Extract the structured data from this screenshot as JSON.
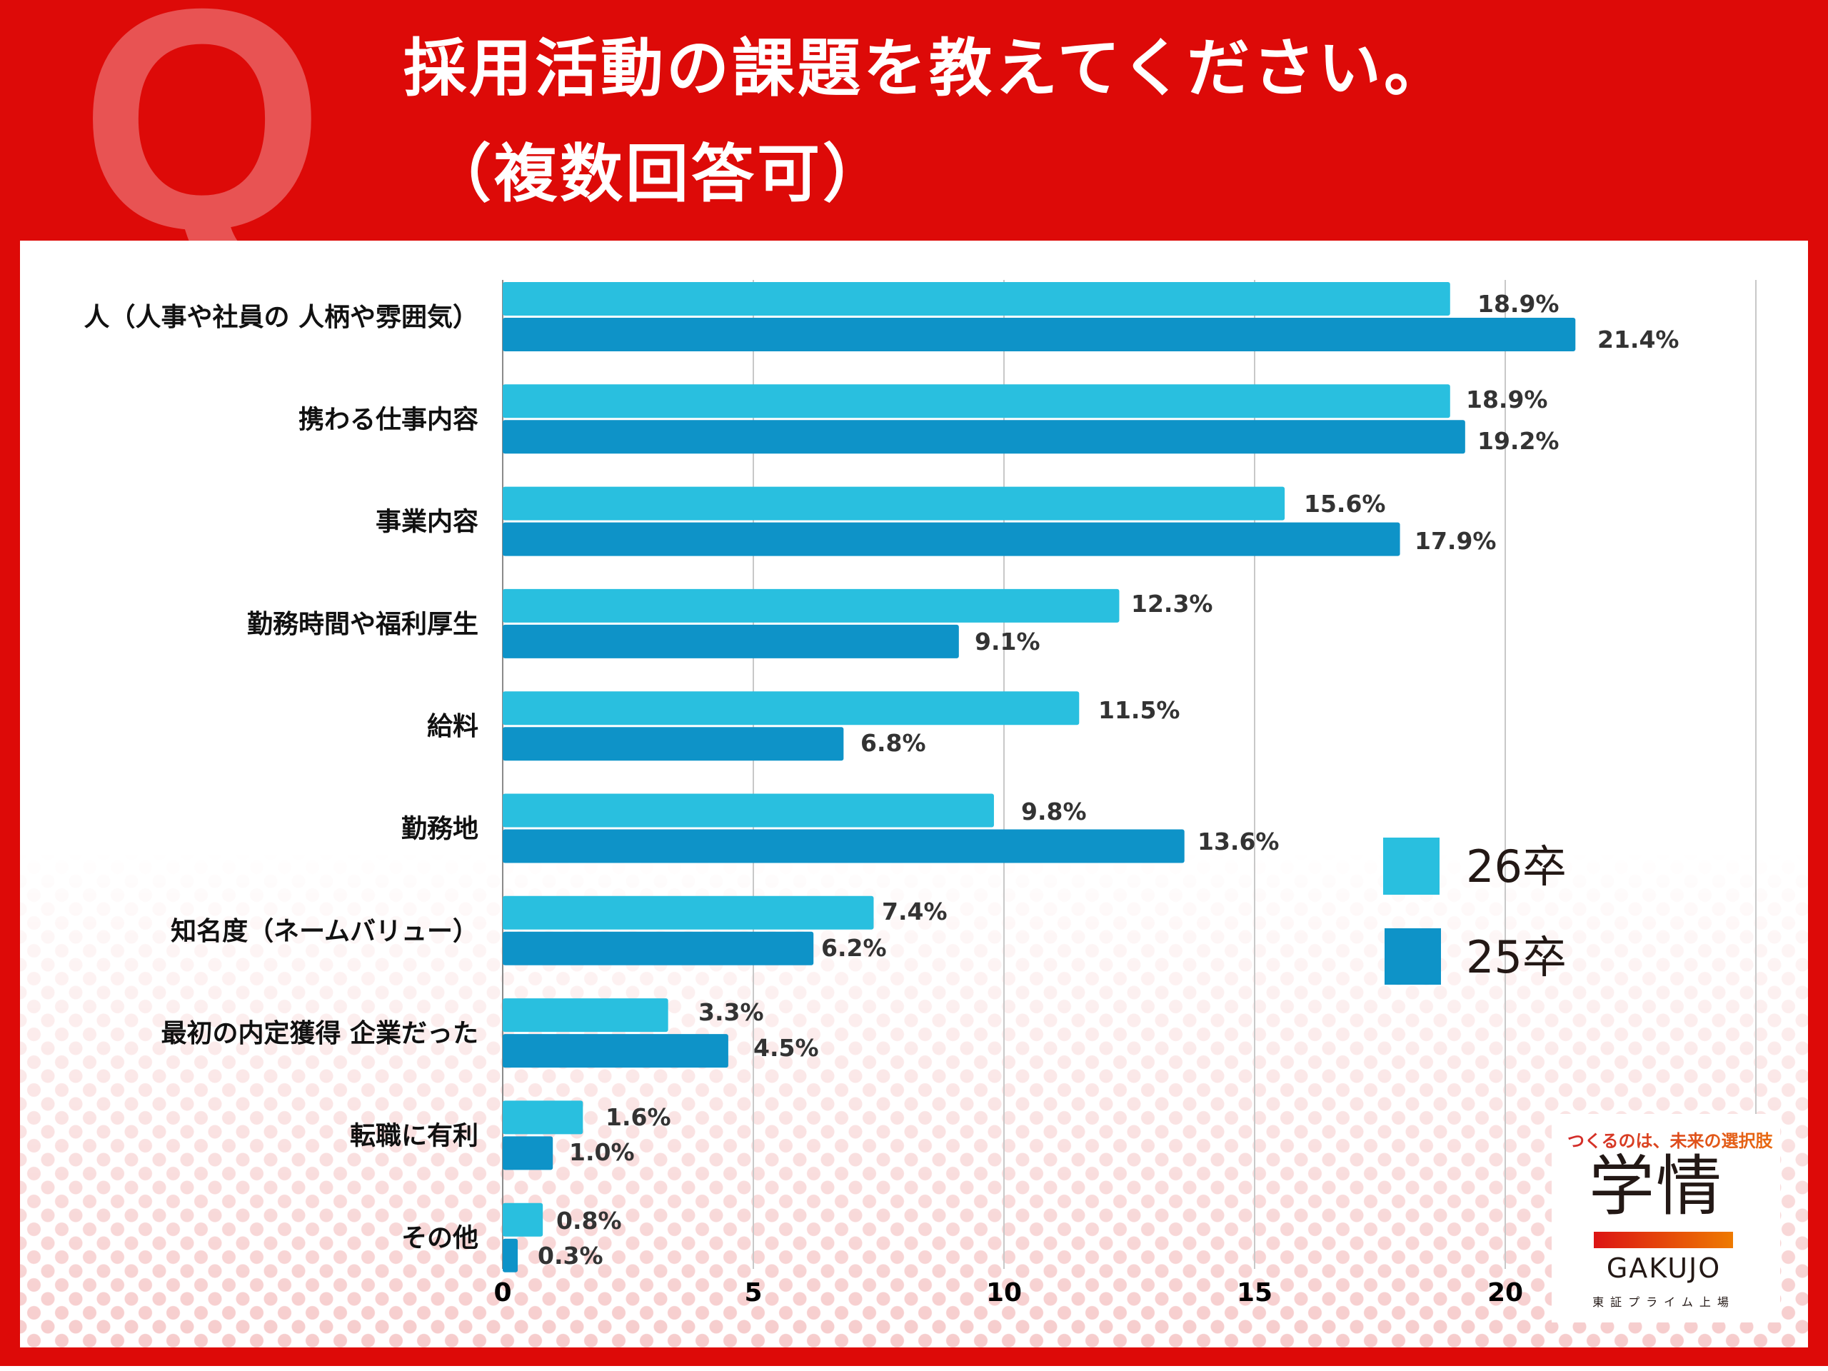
{
  "header": {
    "q_mark": "Q",
    "title_line1": "採用活動の課題を教えてください。",
    "title_line2": "（複数回答可）"
  },
  "colors": {
    "background_red": "#dd0a08",
    "series_26": "#29bfdf",
    "series_25": "#0e93c8"
  },
  "chart_data": {
    "type": "bar",
    "orientation": "horizontal",
    "title": "採用活動の課題を教えてください。（複数回答可）",
    "xlabel": "",
    "ylabel": "",
    "xlim": [
      0,
      25
    ],
    "x_ticks": [
      0,
      5,
      10,
      15,
      20
    ],
    "x_tick_labels": [
      "0",
      "5",
      "10",
      "15",
      "20"
    ],
    "grid": true,
    "legend_position": "right",
    "categories": [
      "人（人事や社員の 人柄や雰囲気）",
      "携わる仕事内容",
      "事業内容",
      "勤務時間や福利厚生",
      "給料",
      "勤務地",
      "知名度（ネームバリュー）",
      "最初の内定獲得 企業だった",
      "転職に有利",
      "その他"
    ],
    "series": [
      {
        "name": "26卒",
        "color": "#29bfdf",
        "values": [
          18.9,
          18.9,
          15.6,
          12.3,
          11.5,
          9.8,
          7.4,
          3.3,
          1.6,
          0.8
        ],
        "labels": [
          "18.9%",
          "18.9%",
          "15.6%",
          "12.3%",
          "11.5%",
          "9.8%",
          "7.4%",
          "3.3%",
          "1.6%",
          "0.8%"
        ]
      },
      {
        "name": "25卒",
        "color": "#0e93c8",
        "values": [
          21.4,
          19.2,
          17.9,
          9.1,
          6.8,
          13.6,
          6.2,
          4.5,
          1.0,
          0.3
        ],
        "labels": [
          "21.4%",
          "19.2%",
          "17.9%",
          "9.1%",
          "6.8%",
          "13.6%",
          "6.2%",
          "4.5%",
          "1.0%",
          "0.3%"
        ]
      }
    ]
  },
  "logo": {
    "tagline": "つくるのは、未来の選択肢",
    "kanji": "学情",
    "english": "GAKUJO",
    "subtitle": "東証プライム上場"
  }
}
